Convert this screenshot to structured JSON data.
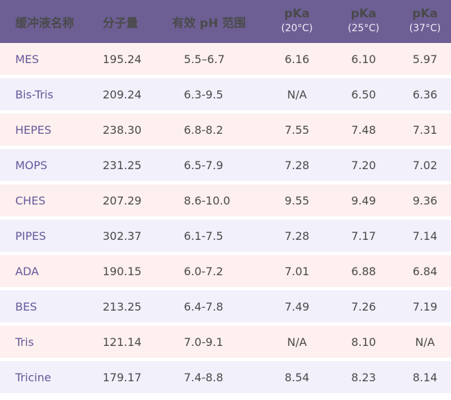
{
  "table": {
    "headers": {
      "name": "缓冲液名称",
      "mw": "分子量",
      "ph_range": "有效 pH 范围",
      "pka20": "pKa",
      "pka20_sub": "(20°C)",
      "pka25": "pKa",
      "pka25_sub": "(25°C)",
      "pka37": "pKa",
      "pka37_sub": "(37°C)"
    },
    "rows": [
      {
        "name": "MES",
        "mw": "195.24",
        "ph_range": "5.5–6.7",
        "pka20": "6.16",
        "pka25": "6.10",
        "pka37": "5.97"
      },
      {
        "name": "Bis-Tris",
        "mw": "209.24",
        "ph_range": "6.3-9.5",
        "pka20": "N/A",
        "pka25": "6.50",
        "pka37": "6.36"
      },
      {
        "name": "HEPES",
        "mw": "238.30",
        "ph_range": "6.8-8.2",
        "pka20": "7.55",
        "pka25": "7.48",
        "pka37": "7.31"
      },
      {
        "name": "MOPS",
        "mw": "231.25",
        "ph_range": "6.5-7.9",
        "pka20": "7.28",
        "pka25": "7.20",
        "pka37": "7.02"
      },
      {
        "name": "CHES",
        "mw": "207.29",
        "ph_range": "8.6-10.0",
        "pka20": "9.55",
        "pka25": "9.49",
        "pka37": "9.36"
      },
      {
        "name": "PIPES",
        "mw": "302.37",
        "ph_range": "6.1-7.5",
        "pka20": "7.28",
        "pka25": "7.17",
        "pka37": "7.14"
      },
      {
        "name": "ADA",
        "mw": "190.15",
        "ph_range": "6.0-7.2",
        "pka20": "7.01",
        "pka25": "6.88",
        "pka37": "6.84"
      },
      {
        "name": "BES",
        "mw": "213.25",
        "ph_range": "6.4-7.8",
        "pka20": "7.49",
        "pka25": "7.26",
        "pka37": "7.19"
      },
      {
        "name": "Tris",
        "mw": "121.14",
        "ph_range": "7.0-9.1",
        "pka20": "N/A",
        "pka25": "8.10",
        "pka37": "N/A"
      },
      {
        "name": "Tricine",
        "mw": "179.17",
        "ph_range": "7.4-8.8",
        "pka20": "8.54",
        "pka25": "8.23",
        "pka37": "8.14"
      }
    ]
  },
  "colors": {
    "header_bg": "#6d5f94",
    "row_odd": "#fdf0ee",
    "row_even": "#f1f0fb",
    "name_text": "#66589a"
  }
}
